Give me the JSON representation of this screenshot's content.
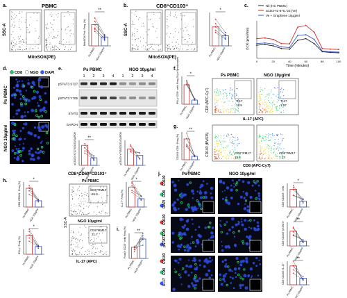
{
  "panels": {
    "a": {
      "letter": "a.",
      "title": "PBMC",
      "ylabel": "SSC-A",
      "xlabel": "MitoSOX(PE)",
      "star": "**",
      "bar_ylabel": "MitoSOX Pos. Freq. (%)",
      "bar_cats": [
        "Ps PBMC",
        "NGO 10μg/ml"
      ],
      "bar_values": [
        1.9,
        0.8
      ],
      "pairs": [
        [
          2.5,
          1.0
        ],
        [
          2.2,
          0.8
        ],
        [
          1.9,
          0.9
        ],
        [
          1.6,
          0.6
        ],
        [
          1.5,
          0.7
        ],
        [
          1.3,
          0.5
        ]
      ]
    },
    "b": {
      "letter": "b.",
      "title": "CD8⁺CD103⁺",
      "ylabel": "SSC-A",
      "xlabel": "MitoSOX(PE)",
      "star": "*",
      "bar_cats": [
        "Ps PBMC",
        "NGO 10μg/ml"
      ],
      "bar_values": [
        1.7,
        0.9
      ],
      "pairs": [
        [
          2.4,
          1.2
        ],
        [
          2.0,
          0.9
        ],
        [
          1.7,
          1.0
        ],
        [
          1.4,
          0.7
        ],
        [
          1.2,
          0.6
        ]
      ]
    },
    "c": {
      "letter": "c.",
      "legend": [
        "Nil (HC PBMC)",
        "aCD3+IL-6+IL-23 (Ve)",
        "Ve + Graphene 10μg/ml"
      ],
      "ylabel": "OCR (pmol/min)",
      "xlabel": "Time (minutes)",
      "xticks": [
        "0",
        "20",
        "40",
        "60",
        "80",
        "100"
      ],
      "colors": [
        "#222222",
        "#cc2a2a",
        "#3b5ccc"
      ],
      "chart_data": {
        "type": "line",
        "x": [
          0,
          10,
          20,
          30,
          40,
          50,
          60,
          70,
          80,
          90,
          100
        ],
        "series": [
          {
            "name": "Nil (HC PBMC)",
            "values": [
              40,
              42,
              38,
              30,
              28,
              55,
              60,
              45,
              20,
              18,
              17
            ]
          },
          {
            "name": "aCD3+IL-6+IL-23 (Ve)",
            "values": [
              60,
              62,
              58,
              45,
              44,
              95,
              100,
              80,
              30,
              28,
              27
            ]
          },
          {
            "name": "Ve + Graphene 10μg/ml",
            "values": [
              45,
              47,
              44,
              35,
              33,
              70,
              72,
              58,
              22,
              20,
              19
            ]
          }
        ]
      }
    },
    "d": {
      "letter": "d.",
      "legend": [
        "CD8",
        "NGO",
        "DAPI"
      ],
      "legend_colors": [
        "#27c76f",
        "#ffffff",
        "#3358ff"
      ],
      "rows": [
        "Ps PBMC",
        "NGO 10μg/ml"
      ]
    },
    "e": {
      "letter": "e.",
      "header_left": "Ps PBMC",
      "header_right": "NGO 10μg/ml",
      "lanes": [
        "1",
        "2",
        "3",
        "4",
        "1",
        "2",
        "3",
        "4"
      ],
      "bands": [
        "pSTAT3 S727",
        "pSTAT3 Y705",
        "STAT3",
        "GAPDH"
      ],
      "star_left": "**",
      "left_ylabel": "pSTAT3^S727/STAT3/GAPDH",
      "right_ylabel": "pSTAT3^Y705/STAT3/GAPDH",
      "left_values": [
        1.6,
        0.6
      ],
      "right_values": [
        1.3,
        0.8
      ]
    },
    "f": {
      "letter": "f.",
      "ylabel": "IFN-γ⁺CD8⁺ cells Freq.(%) of lymphocytes",
      "left_title": "Ps PBMC",
      "right_title": "NGO 10μg/ml",
      "gate_left": "Tc17",
      "gate_left_val": "18.9",
      "gate_right": "Tc17",
      "gate_right_val": "1.97",
      "xlabel": "IL-17 (APC)",
      "yaxis": "CD8 (APC-Cy7)",
      "star": "*",
      "bar_values": [
        14,
        3
      ]
    },
    "g": {
      "letter": "g.",
      "ylabel": "CD103⁺CD8⁺ Freq.(%)",
      "yaxis": "CD103 (BV605)",
      "xlabel": "CD8 (APC-Cy7)",
      "gate_left": "CD8⁺RM17",
      "gate_left_val": "18.6",
      "gate_right": "CD8⁺RM17",
      "gate_right_val": "1.13",
      "star": "**",
      "bar_values": [
        12,
        2
      ]
    },
    "h": {
      "letter": "h.",
      "title": "CD8⁺CD69⁺CD103⁺",
      "sub_top": "Ps PBMC",
      "sub_bottom": "NGO 10μg/ml",
      "gate_top": "CD8⁺RM17",
      "gate_top_val": "26.9",
      "gate_bottom": "CD8⁺RM17",
      "gate_bottom_val": "21.7",
      "xlabel": "IL-17 (APC)",
      "yaxis": "SSC-A",
      "star_a": "*",
      "star_b": "*",
      "star_c": "*",
      "bars_a": [
        18,
        6
      ],
      "bars_b": [
        12,
        5
      ],
      "bars_c": [
        24,
        10
      ]
    },
    "i": {
      "letter": "i.",
      "ylabel": "Foxp3⁺CD25⁺ cells Freq.(%)",
      "star": "**",
      "bar_values": [
        4,
        7
      ]
    },
    "j": {
      "letter": "j.",
      "col_left": "Ps PBMC",
      "col_right": "NGO 10μg/ml",
      "rows": [
        {
          "labels": [
            "CD103",
            "CD8",
            "DAPI"
          ],
          "colors": [
            "#e03333",
            "#27c76f",
            "#3358ff"
          ],
          "star": "*",
          "bars": [
            3.0,
            1.0
          ],
          "ylabel": "CD8⁺CD103⁺ cells"
        },
        {
          "labels": [
            "CD103",
            "CD8",
            "pSTAT3"
          ],
          "colors": [
            "#e03333",
            "#27c76f",
            "#3358ff"
          ],
          "star": "**",
          "bars": [
            2.5,
            0.8
          ],
          "ylabel": "CD8⁺CD103⁺pSTAT3⁺"
        },
        {
          "labels": [
            "CD103",
            "CD8",
            "IL-17"
          ],
          "colors": [
            "#e03333",
            "#27c76f",
            "#3358ff"
          ],
          "star": "**",
          "bars": [
            3.2,
            1.1
          ],
          "ylabel": "CD8⁺CD103⁺IL-17⁺"
        }
      ]
    }
  },
  "bar_cats": [
    "Ps PBMC",
    "NGO 10μg/ml"
  ]
}
